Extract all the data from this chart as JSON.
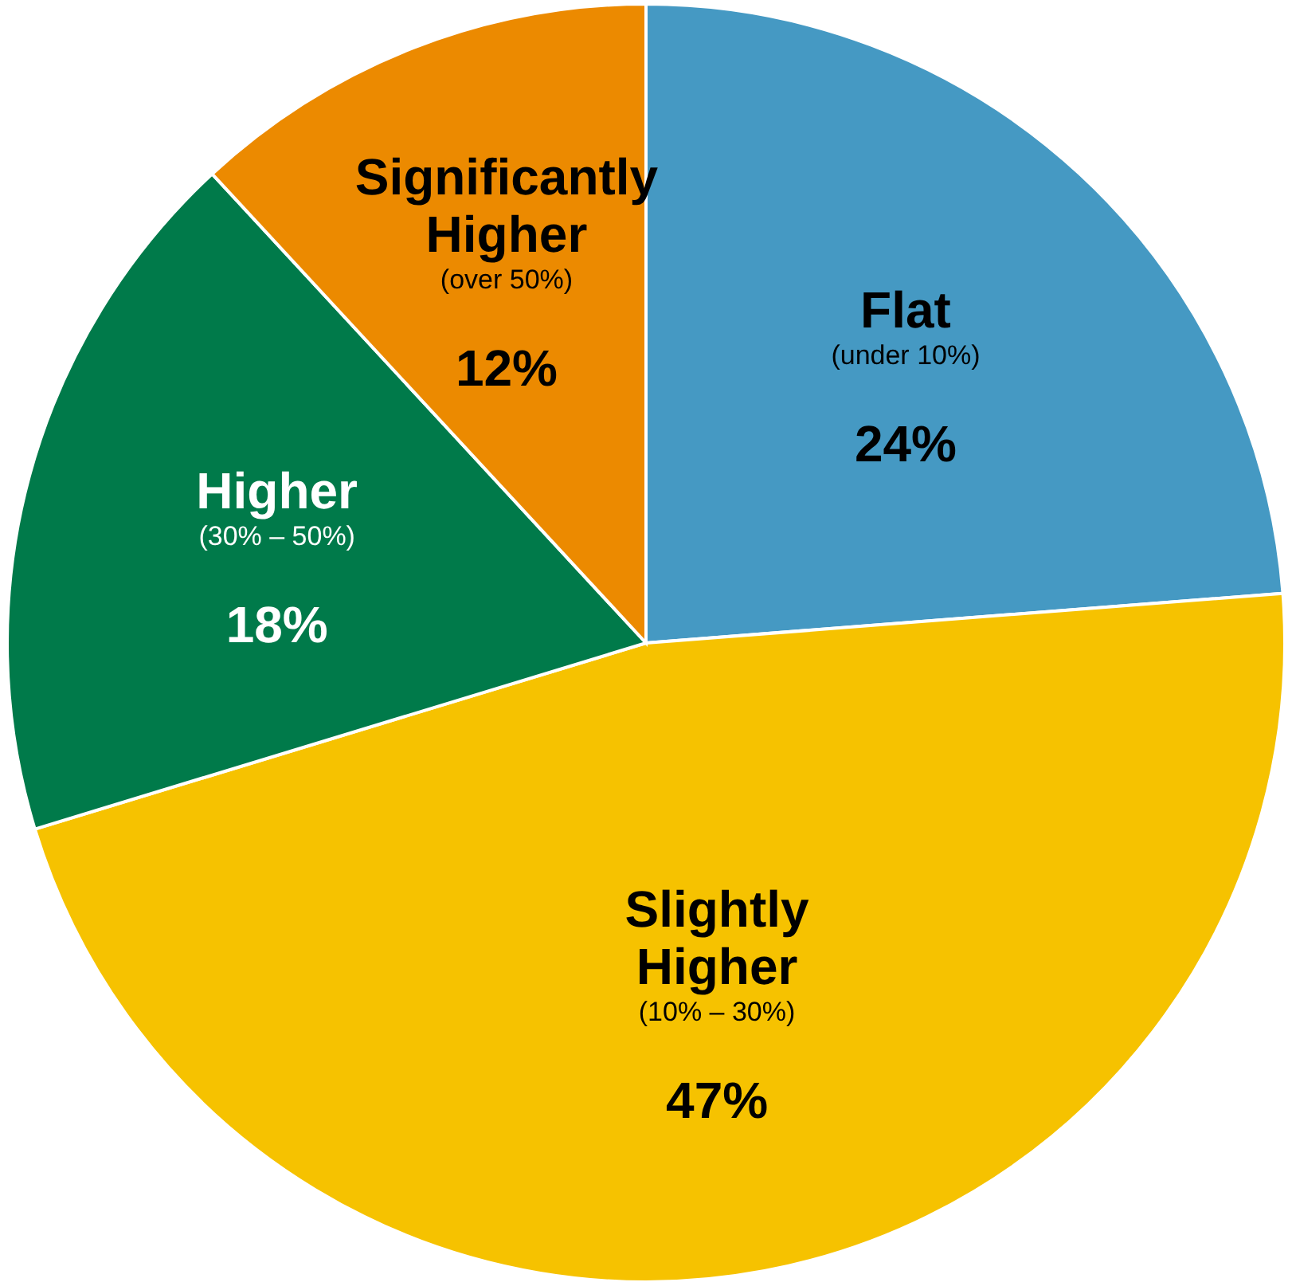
{
  "chart_data": {
    "type": "pie",
    "categories": [
      "Flat\n(under 10%)",
      "Slightly\nHigher\n(10% – 30%)",
      "Higher\n(30% – 50%)",
      "Significantly\nHigher\n(over 50%)"
    ],
    "values": [
      24,
      47,
      18,
      12
    ],
    "value_labels": [
      "24%",
      "47%",
      "18%",
      "12%"
    ],
    "colors": [
      "#4599c3",
      "#f6c200",
      "#007a4a",
      "#ec8a00"
    ]
  }
}
